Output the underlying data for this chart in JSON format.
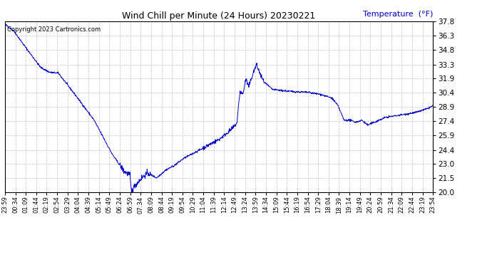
{
  "title": "Wind Chill per Minute (24 Hours) 20230221",
  "ylabel_text": "Temperature  (°F)",
  "copyright_text": "Copyright 2023 Cartronics.com",
  "line_color": "#0000CC",
  "ylabel_color": "#0000CC",
  "background_color": "#ffffff",
  "grid_color": "#bbbbbb",
  "ylim": [
    20.0,
    37.8
  ],
  "yticks": [
    20.0,
    21.5,
    23.0,
    24.4,
    25.9,
    27.4,
    28.9,
    30.4,
    31.9,
    33.3,
    34.8,
    36.3,
    37.8
  ],
  "xtick_labels": [
    "23:59",
    "00:34",
    "01:09",
    "01:44",
    "02:19",
    "02:54",
    "03:29",
    "04:04",
    "04:39",
    "05:14",
    "05:49",
    "06:24",
    "06:59",
    "07:34",
    "08:09",
    "08:44",
    "09:19",
    "09:54",
    "10:29",
    "11:04",
    "11:39",
    "12:14",
    "12:49",
    "13:24",
    "13:59",
    "14:34",
    "15:09",
    "15:44",
    "16:19",
    "16:54",
    "17:29",
    "18:04",
    "18:39",
    "19:14",
    "19:49",
    "20:24",
    "20:59",
    "21:34",
    "22:09",
    "22:44",
    "23:19",
    "23:54"
  ],
  "num_points": 1440,
  "keypoints_x": [
    0,
    30,
    60,
    120,
    150,
    180,
    240,
    300,
    360,
    400,
    420,
    425,
    440,
    460,
    480,
    510,
    540,
    570,
    600,
    660,
    720,
    760,
    780,
    790,
    800,
    810,
    820,
    830,
    845,
    860,
    870,
    900,
    960,
    1020,
    1060,
    1080,
    1100,
    1120,
    1140,
    1160,
    1180,
    1200,
    1220,
    1250,
    1280,
    1320,
    1380,
    1420,
    1439
  ],
  "keypoints_y": [
    37.5,
    36.8,
    35.5,
    33.0,
    32.5,
    32.4,
    30.0,
    27.5,
    24.0,
    22.2,
    21.8,
    20.1,
    20.8,
    21.5,
    22.0,
    21.5,
    22.3,
    22.8,
    23.5,
    24.5,
    25.5,
    26.5,
    27.2,
    30.5,
    30.2,
    31.8,
    31.0,
    32.0,
    33.3,
    32.2,
    31.5,
    30.7,
    30.5,
    30.4,
    30.2,
    30.0,
    29.8,
    29.0,
    27.5,
    27.5,
    27.3,
    27.5,
    27.0,
    27.4,
    27.8,
    28.0,
    28.3,
    28.7,
    29.0
  ]
}
